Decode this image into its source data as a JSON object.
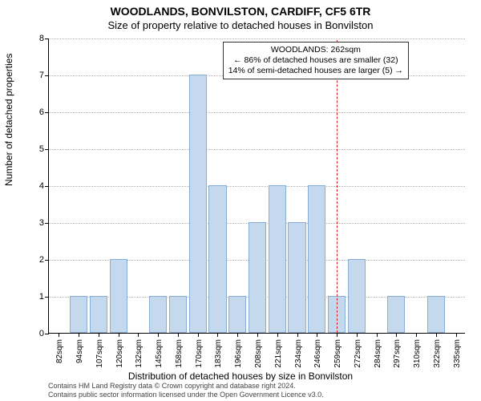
{
  "chart": {
    "type": "histogram",
    "title_main": "WOODLANDS, BONVILSTON, CARDIFF, CF5 6TR",
    "title_sub": "Size of property relative to detached houses in Bonvilston",
    "xlabel": "Distribution of detached houses by size in Bonvilston",
    "ylabel": "Number of detached properties",
    "ylim": [
      0,
      8
    ],
    "ytick_step": 1,
    "background_color": "#ffffff",
    "grid_color": "#b0b0b0",
    "bar_fill": "#c5d9ee",
    "bar_border": "#88aed6",
    "marker_color": "#d02020",
    "title_fontsize": 14,
    "subtitle_fontsize": 13,
    "label_fontsize": 12,
    "tick_fontsize": 11,
    "bar_width": 0.9,
    "x_categories": [
      "82sqm",
      "94sqm",
      "107sqm",
      "120sqm",
      "132sqm",
      "145sqm",
      "158sqm",
      "170sqm",
      "183sqm",
      "196sqm",
      "208sqm",
      "221sqm",
      "234sqm",
      "246sqm",
      "259sqm",
      "272sqm",
      "284sqm",
      "297sqm",
      "310sqm",
      "322sqm",
      "335sqm"
    ],
    "values": [
      0,
      1,
      1,
      2,
      0,
      1,
      1,
      7,
      4,
      1,
      3,
      4,
      3,
      4,
      1,
      2,
      0,
      1,
      0,
      1,
      0
    ],
    "marker_x_value": "262sqm",
    "marker_x_position": 14.5,
    "annotation": {
      "line1": "WOODLANDS: 262sqm",
      "line2": "← 86% of detached houses are smaller (32)",
      "line3": "14% of semi-detached houses are larger (5) →"
    },
    "copyright_line1": "Contains HM Land Registry data © Crown copyright and database right 2024.",
    "copyright_line2": "Contains public sector information licensed under the Open Government Licence v3.0."
  }
}
